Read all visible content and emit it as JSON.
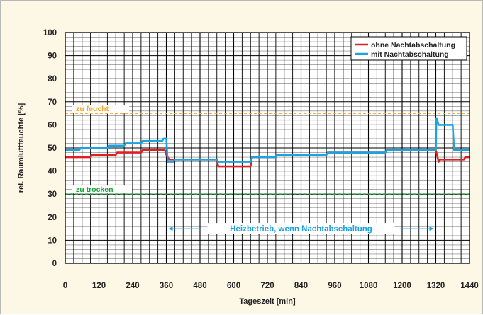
{
  "chart_data": {
    "type": "line",
    "title": "",
    "xlabel": "Tageszeit [min]",
    "ylabel": "rel. Raumluftfeuchte [%]",
    "xlim": [
      0,
      1440
    ],
    "ylim": [
      0,
      100
    ],
    "x_ticks": [
      0,
      120,
      240,
      360,
      480,
      600,
      720,
      840,
      960,
      1080,
      1200,
      1320,
      1440
    ],
    "y_ticks": [
      0,
      10,
      20,
      30,
      40,
      50,
      60,
      70,
      80,
      90,
      100
    ],
    "grid": true,
    "legend_position": "top-right",
    "colors": {
      "ohne": "#e02020",
      "mit": "#1aa3df",
      "feucht": "#f5a623",
      "trocken": "#1a9e3a",
      "annotation": "#1aa3df"
    },
    "thresholds": [
      {
        "label": "zu feucht",
        "value": 65
      },
      {
        "label": "zu trocken",
        "value": 30
      }
    ],
    "annotation": {
      "text": "Heizbetrieb, wenn Nachtabschaltung",
      "x_start": 360,
      "x_end": 1320,
      "y": 15
    },
    "series": [
      {
        "name": "ohne Nachtabschaltung",
        "color": "#e02020",
        "x": [
          0,
          90,
          95,
          180,
          185,
          270,
          275,
          355,
          360,
          370,
          375,
          540,
          545,
          660,
          665,
          750,
          755,
          930,
          935,
          1140,
          1145,
          1320,
          1330,
          1335,
          1420,
          1425,
          1440
        ],
        "y": [
          46,
          46,
          47,
          47,
          48,
          48,
          49,
          49,
          47,
          45,
          45,
          45,
          42,
          42,
          46,
          46,
          47,
          47,
          48,
          48,
          49,
          49,
          44,
          45,
          45,
          46,
          46
        ]
      },
      {
        "name": "mit Nachtabschaltung",
        "color": "#1aa3df",
        "x": [
          0,
          50,
          55,
          150,
          155,
          210,
          215,
          270,
          275,
          345,
          350,
          360,
          365,
          375,
          385,
          390,
          540,
          545,
          660,
          665,
          750,
          755,
          840,
          845,
          930,
          935,
          1140,
          1145,
          1320,
          1322,
          1330,
          1335,
          1380,
          1385,
          1440
        ],
        "y": [
          49,
          49,
          50,
          50,
          51,
          51,
          52,
          52,
          53,
          53,
          54,
          54,
          44,
          44,
          44,
          45,
          45,
          44,
          44,
          46,
          46,
          47,
          47,
          47,
          47,
          48,
          48,
          49,
          49,
          63,
          60,
          60,
          60,
          49,
          49
        ]
      }
    ]
  }
}
